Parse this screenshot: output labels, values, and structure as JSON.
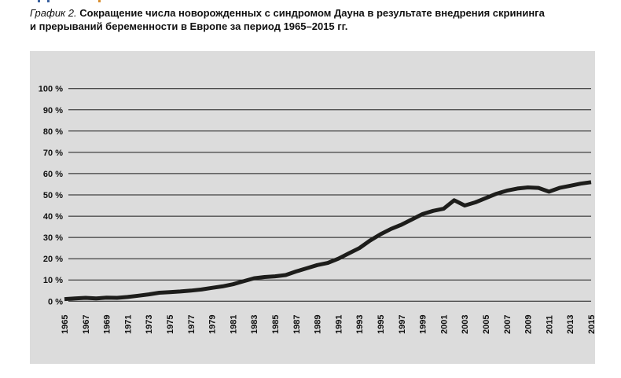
{
  "page": {
    "figure_label": "График 2.",
    "title_line1": "Сокращение числа новорожденных с синдромом Дауна в результате внедрения скрининга",
    "title_line2": "и прерываний беременности в Европе за период 1965–2015 гг."
  },
  "chart_data": {
    "type": "line",
    "title": "График 2. Сокращение числа новорожденных с синдромом Дауна в результате внедрения скрининга и прерываний беременности в Европе за период 1965–2015 гг.",
    "x": [
      1965,
      1966,
      1967,
      1968,
      1969,
      1970,
      1971,
      1972,
      1973,
      1974,
      1975,
      1976,
      1977,
      1978,
      1979,
      1980,
      1981,
      1982,
      1983,
      1984,
      1985,
      1986,
      1987,
      1988,
      1989,
      1990,
      1991,
      1992,
      1993,
      1994,
      1995,
      1996,
      1997,
      1998,
      1999,
      2000,
      2001,
      2002,
      2003,
      2004,
      2005,
      2006,
      2007,
      2008,
      2009,
      2010,
      2011,
      2012,
      2013,
      2014,
      2015
    ],
    "values": [
      1.0,
      1.3,
      1.6,
      1.3,
      1.7,
      1.6,
      2.0,
      2.6,
      3.2,
      4.0,
      4.3,
      4.6,
      5.0,
      5.5,
      6.3,
      7.0,
      8.0,
      9.4,
      10.8,
      11.4,
      11.7,
      12.3,
      14.0,
      15.5,
      17.0,
      18.0,
      20.0,
      22.5,
      25.0,
      28.5,
      31.5,
      34.0,
      36.0,
      38.5,
      41.0,
      42.5,
      43.5,
      47.5,
      45.0,
      46.5,
      48.5,
      50.5,
      52.0,
      53.0,
      53.5,
      53.3,
      51.5,
      53.3,
      54.3,
      55.3,
      56.0
    ],
    "xlabel": "",
    "ylabel": "",
    "ylim": [
      0,
      100
    ],
    "grid": true,
    "legend": "none",
    "x_tick_labels": [
      "1965",
      "1967",
      "1969",
      "1971",
      "1973",
      "1975",
      "1977",
      "1979",
      "1981",
      "1983",
      "1985",
      "1987",
      "1989",
      "1991",
      "1993",
      "1995",
      "1997",
      "1999",
      "2001",
      "2003",
      "2005",
      "2007",
      "2009",
      "2011",
      "2013",
      "2015"
    ],
    "y_tick_labels": [
      "0 %",
      "10 %",
      "20 %",
      "30 %",
      "40 %",
      "50 %",
      "60 %",
      "70 %",
      "80 %",
      "90 %",
      "100 %"
    ],
    "line_color": "#1d1d1b",
    "line_width": 5,
    "panel_bg": "#dcdcdc",
    "grid_color": "#1a1a1a"
  }
}
